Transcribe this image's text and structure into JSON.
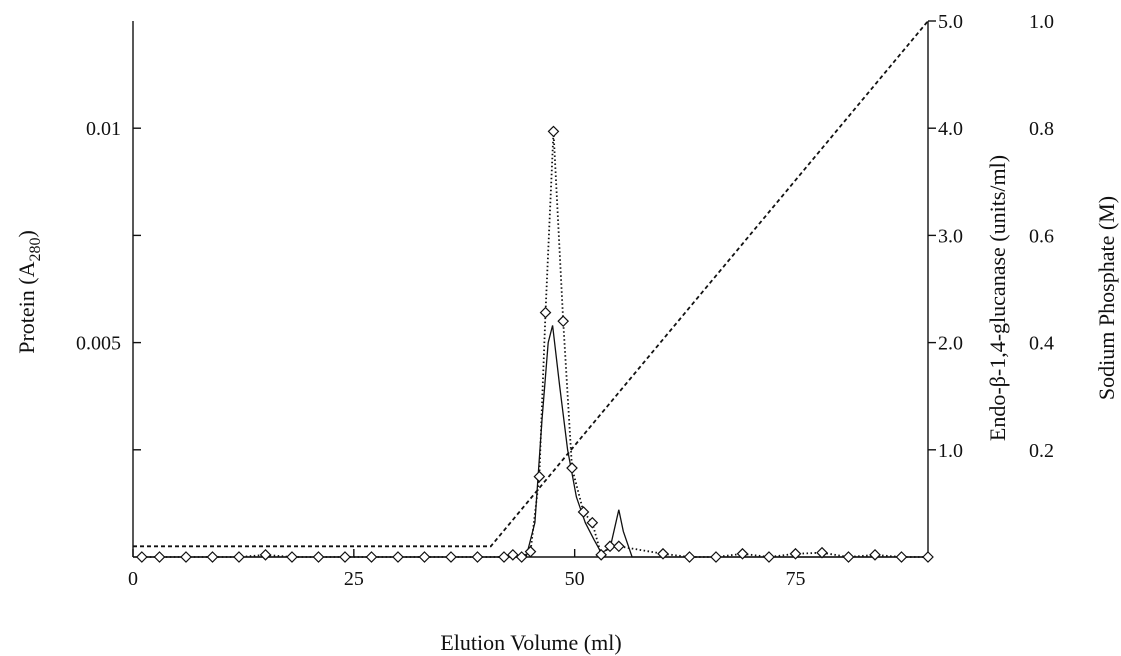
{
  "chart_data": {
    "type": "line",
    "title": "",
    "xlabel": "Elution Volume (ml)",
    "ylabel_left": {
      "main": "Protein (A",
      "sub": "280",
      "close": ")"
    },
    "ylabel_right1": "Endo-β-1,4-glucanase (units/ml)",
    "ylabel_right2": "Sodium Phosphate (M)",
    "xlim": [
      0,
      90
    ],
    "ylim_left": [
      0,
      0.0125
    ],
    "ylim_right1": [
      0,
      5.0
    ],
    "ylim_right2": [
      0,
      1.0
    ],
    "x_ticks": [
      {
        "value": 0,
        "label": "0"
      },
      {
        "value": 25,
        "label": "25"
      },
      {
        "value": 50,
        "label": "50"
      },
      {
        "value": 75,
        "label": "75"
      }
    ],
    "y_left_ticks": [
      {
        "value": 0.0025,
        "label": ""
      },
      {
        "value": 0.005,
        "label": "0.005"
      },
      {
        "value": 0.0075,
        "label": ""
      },
      {
        "value": 0.01,
        "label": "0.01"
      }
    ],
    "y_right1_ticks": [
      {
        "value": 1.0,
        "label": "1.0"
      },
      {
        "value": 2.0,
        "label": "2.0"
      },
      {
        "value": 3.0,
        "label": "3.0"
      },
      {
        "value": 4.0,
        "label": "4.0"
      },
      {
        "value": 5.0,
        "label": "5.0"
      }
    ],
    "y_right2_ticks": [
      {
        "value": 0.2,
        "label": "0.2"
      },
      {
        "value": 0.4,
        "label": "0.4"
      },
      {
        "value": 0.6,
        "label": "0.6"
      },
      {
        "value": 0.8,
        "label": "0.8"
      },
      {
        "value": 1.0,
        "label": "1.0"
      }
    ],
    "series": [
      {
        "axis": "left",
        "style": "solid",
        "points": [
          [
            0,
            0
          ],
          [
            44.5,
            0
          ],
          [
            45.5,
            0.0008
          ],
          [
            46.3,
            0.0032
          ],
          [
            47.0,
            0.005
          ],
          [
            47.5,
            0.0054
          ],
          [
            48.3,
            0.004
          ],
          [
            49.2,
            0.0025
          ],
          [
            50.2,
            0.0014
          ],
          [
            51.2,
            0.0008
          ],
          [
            52.2,
            0.0004
          ],
          [
            53.0,
            0.0001
          ],
          [
            54.0,
            0.0002
          ],
          [
            55.0,
            0.0011
          ],
          [
            55.5,
            0.0006
          ],
          [
            56.5,
            0
          ],
          [
            90,
            0
          ]
        ]
      },
      {
        "axis": "right1",
        "style": "dotted",
        "marker": "diamond",
        "points": [
          [
            1,
            0
          ],
          [
            3,
            0
          ],
          [
            6,
            0
          ],
          [
            9,
            0
          ],
          [
            12,
            0
          ],
          [
            15,
            0.02
          ],
          [
            18,
            0
          ],
          [
            21,
            0
          ],
          [
            24,
            0
          ],
          [
            27,
            0
          ],
          [
            30,
            0
          ],
          [
            33,
            0
          ],
          [
            36,
            0
          ],
          [
            39,
            0
          ],
          [
            42,
            0
          ],
          [
            43,
            0.02
          ],
          [
            44,
            0
          ],
          [
            45,
            0.05
          ],
          [
            46,
            0.75
          ],
          [
            46.7,
            2.28
          ],
          [
            47.6,
            3.97
          ],
          [
            48.7,
            2.2
          ],
          [
            49.7,
            0.83
          ],
          [
            51,
            0.42
          ],
          [
            52,
            0.32
          ],
          [
            53,
            0.02
          ],
          [
            54,
            0.1
          ],
          [
            55,
            0.1
          ],
          [
            60,
            0.03
          ],
          [
            63,
            0
          ],
          [
            66,
            0
          ],
          [
            69,
            0.03
          ],
          [
            72,
            0
          ],
          [
            75,
            0.03
          ],
          [
            78,
            0.04
          ],
          [
            81,
            0
          ],
          [
            84,
            0.02
          ],
          [
            87,
            0
          ],
          [
            90,
            0
          ]
        ]
      },
      {
        "axis": "right2",
        "style": "dashed",
        "points": [
          [
            0,
            0.02
          ],
          [
            40.5,
            0.02
          ],
          [
            90,
            1.0
          ]
        ]
      }
    ]
  }
}
